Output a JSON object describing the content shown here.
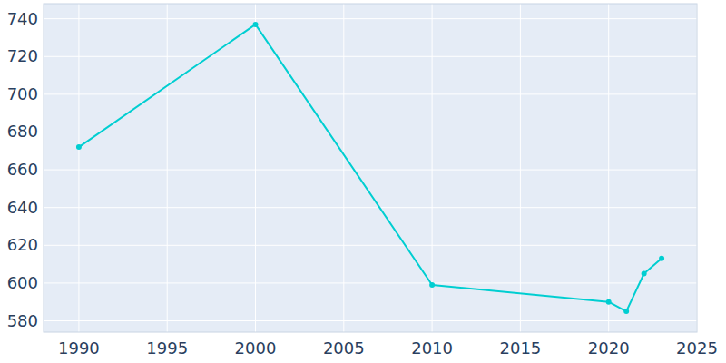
{
  "chart_data": {
    "type": "line",
    "x": [
      1990,
      2000,
      2010,
      2020,
      2021,
      2022,
      2023
    ],
    "values": [
      672,
      737,
      599,
      590,
      585,
      605,
      613
    ],
    "color": "#00ced1",
    "marker": "circle",
    "xlim": [
      1988,
      2025
    ],
    "xticks": [
      1990,
      1995,
      2000,
      2005,
      2010,
      2015,
      2020,
      2025
    ],
    "ylim": [
      574,
      748
    ],
    "yticks": [
      580,
      600,
      620,
      640,
      660,
      680,
      700,
      720,
      740
    ],
    "grid": true
  }
}
